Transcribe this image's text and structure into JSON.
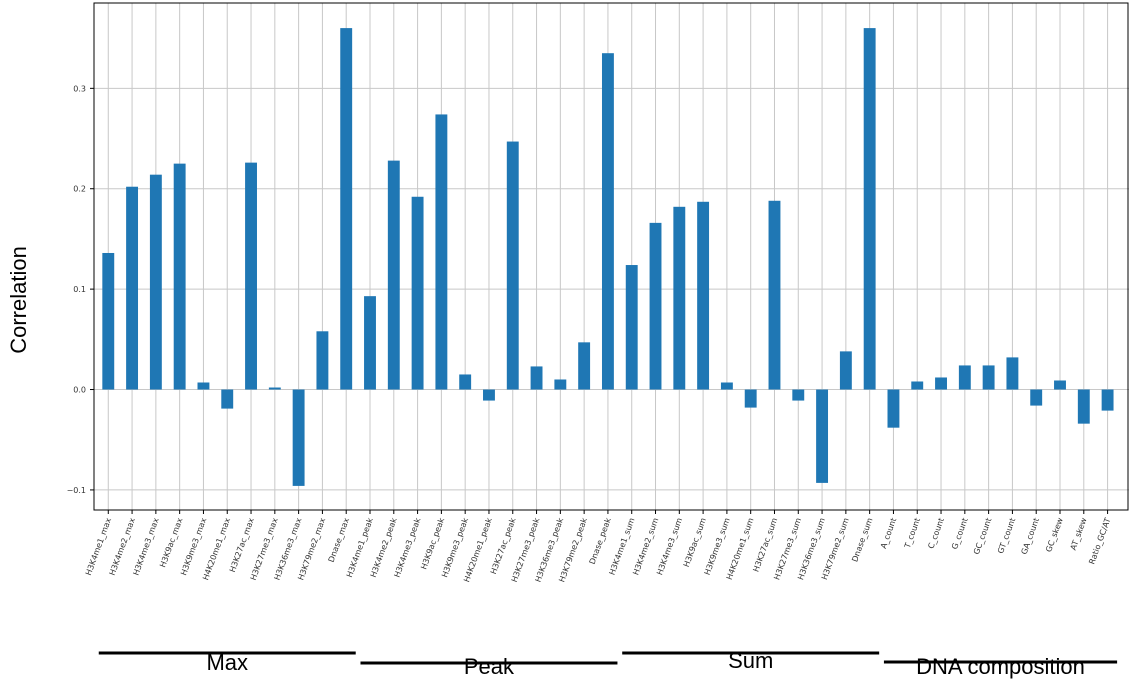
{
  "chart_data": {
    "type": "bar",
    "title": "",
    "xlabel": "",
    "ylabel": "Correlation",
    "ylim": [
      -0.12,
      0.385
    ],
    "yticks": [
      -0.1,
      0.0,
      0.1,
      0.2,
      0.3
    ],
    "ytick_labels": [
      "−0.1",
      "0.0",
      "0.1",
      "0.2",
      "0.3"
    ],
    "grid": true,
    "bar_color": "#1f77b4",
    "categories": [
      "H3K4me1_max",
      "H3K4me2_max",
      "H3K4me3_max",
      "H3K9ac_max",
      "H3K9me3_max",
      "H4K20me1_max",
      "H3K27ac_max",
      "H3K27me3_max",
      "H3K36me3_max",
      "H3K79me2_max",
      "Dnase_max",
      "H3K4me1_peak",
      "H3K4me2_peak",
      "H3K4me3_peak",
      "H3K9ac_peak",
      "H3K9me3_peak",
      "H4K20me1_peak",
      "H3K27ac_peak",
      "H3K27me3_peak",
      "H3K36me3_peak",
      "H3K79me2_peak",
      "Dnase_peak",
      "H3K4me1_sum",
      "H3K4me2_sum",
      "H3K4me3_sum",
      "H3K9ac_sum",
      "H3K9me3_sum",
      "H4K20me1_sum",
      "H3K27ac_sum",
      "H3K27me3_sum",
      "H3K36me3_sum",
      "H3K79me2_sum",
      "Dnase_sum",
      "A_count",
      "T_count",
      "C_count",
      "G_count",
      "GC_count",
      "GT_count",
      "GA_count",
      "GC_skew",
      "AT_skew",
      "Ratio_GC/AT"
    ],
    "values": [
      0.136,
      0.202,
      0.214,
      0.225,
      0.007,
      -0.019,
      0.226,
      0.002,
      -0.096,
      0.058,
      0.36,
      0.093,
      0.228,
      0.192,
      0.274,
      0.015,
      -0.011,
      0.247,
      0.023,
      0.01,
      0.047,
      0.335,
      0.124,
      0.166,
      0.182,
      0.187,
      0.007,
      -0.018,
      0.188,
      -0.011,
      -0.093,
      0.038,
      0.36,
      -0.038,
      0.008,
      0.012,
      0.024,
      0.024,
      0.032,
      -0.016,
      0.009,
      -0.034,
      -0.021
    ],
    "groups": [
      {
        "label": "Max",
        "start": 0,
        "end": 10
      },
      {
        "label": "Peak",
        "start": 11,
        "end": 21
      },
      {
        "label": "Sum",
        "start": 22,
        "end": 32
      },
      {
        "label": "DNA composition",
        "start": 33,
        "end": 42
      }
    ]
  }
}
